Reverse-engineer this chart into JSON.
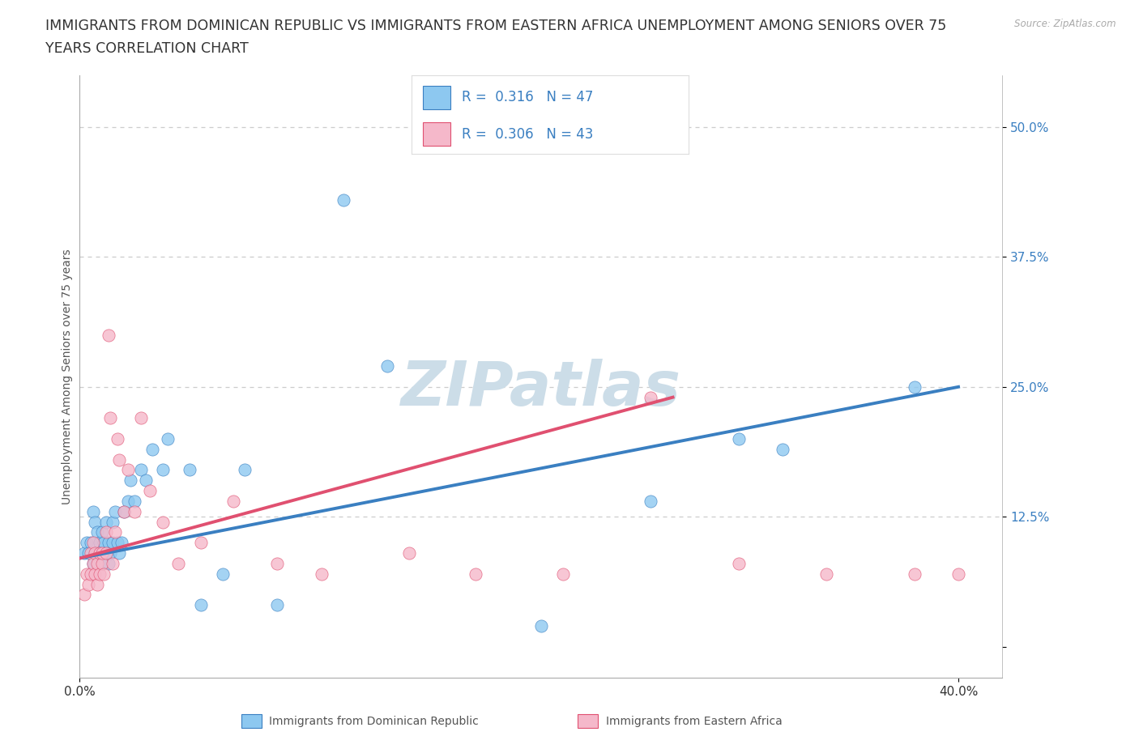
{
  "title_line1": "IMMIGRANTS FROM DOMINICAN REPUBLIC VS IMMIGRANTS FROM EASTERN AFRICA UNEMPLOYMENT AMONG SENIORS OVER 75",
  "title_line2": "YEARS CORRELATION CHART",
  "source": "Source: ZipAtlas.com",
  "ylabel": "Unemployment Among Seniors over 75 years",
  "xlim": [
    0.0,
    0.42
  ],
  "ylim": [
    -0.03,
    0.55
  ],
  "legend1_label": "Immigrants from Dominican Republic",
  "legend2_label": "Immigrants from Eastern Africa",
  "R1": "0.316",
  "N1": "47",
  "R2": "0.306",
  "N2": "43",
  "color1": "#8dc8f0",
  "color2": "#f5b8ca",
  "trendline1_color": "#3a7fc1",
  "trendline2_color": "#e05070",
  "background_color": "#ffffff",
  "watermark": "ZIPatlas",
  "watermark_color": "#ccdde8",
  "scatter1_x": [
    0.002,
    0.003,
    0.004,
    0.005,
    0.006,
    0.006,
    0.007,
    0.007,
    0.008,
    0.008,
    0.009,
    0.009,
    0.01,
    0.01,
    0.011,
    0.012,
    0.012,
    0.013,
    0.013,
    0.014,
    0.015,
    0.015,
    0.016,
    0.017,
    0.018,
    0.019,
    0.02,
    0.022,
    0.023,
    0.025,
    0.028,
    0.03,
    0.033,
    0.038,
    0.04,
    0.05,
    0.055,
    0.065,
    0.075,
    0.09,
    0.12,
    0.14,
    0.21,
    0.26,
    0.3,
    0.32,
    0.38
  ],
  "scatter1_y": [
    0.09,
    0.1,
    0.09,
    0.1,
    0.08,
    0.13,
    0.09,
    0.12,
    0.09,
    0.11,
    0.09,
    0.1,
    0.08,
    0.11,
    0.1,
    0.09,
    0.12,
    0.08,
    0.1,
    0.09,
    0.1,
    0.12,
    0.13,
    0.1,
    0.09,
    0.1,
    0.13,
    0.14,
    0.16,
    0.14,
    0.17,
    0.16,
    0.19,
    0.17,
    0.2,
    0.17,
    0.04,
    0.07,
    0.17,
    0.04,
    0.43,
    0.27,
    0.02,
    0.14,
    0.2,
    0.19,
    0.25
  ],
  "scatter2_x": [
    0.002,
    0.003,
    0.004,
    0.005,
    0.005,
    0.006,
    0.006,
    0.007,
    0.007,
    0.008,
    0.008,
    0.009,
    0.009,
    0.01,
    0.01,
    0.011,
    0.012,
    0.012,
    0.013,
    0.014,
    0.015,
    0.016,
    0.017,
    0.018,
    0.02,
    0.022,
    0.025,
    0.028,
    0.032,
    0.038,
    0.045,
    0.055,
    0.07,
    0.09,
    0.11,
    0.15,
    0.18,
    0.22,
    0.26,
    0.3,
    0.34,
    0.38,
    0.4
  ],
  "scatter2_y": [
    0.05,
    0.07,
    0.06,
    0.07,
    0.09,
    0.08,
    0.1,
    0.07,
    0.09,
    0.06,
    0.08,
    0.07,
    0.09,
    0.08,
    0.09,
    0.07,
    0.09,
    0.11,
    0.3,
    0.22,
    0.08,
    0.11,
    0.2,
    0.18,
    0.13,
    0.17,
    0.13,
    0.22,
    0.15,
    0.12,
    0.08,
    0.1,
    0.14,
    0.08,
    0.07,
    0.09,
    0.07,
    0.07,
    0.24,
    0.08,
    0.07,
    0.07,
    0.07
  ],
  "trendline1_x": [
    0.0,
    0.4
  ],
  "trendline1_y": [
    0.085,
    0.25
  ],
  "trendline2_x": [
    0.0,
    0.27
  ],
  "trendline2_y": [
    0.085,
    0.24
  ],
  "dotted_line_y": 0.125,
  "yticks": [
    0.0,
    0.125,
    0.25,
    0.375,
    0.5
  ],
  "ytick_labels": [
    "",
    "12.5%",
    "25.0%",
    "37.5%",
    "50.0%"
  ],
  "xtick_positions": [
    0.0,
    0.4
  ],
  "xtick_labels": [
    "0.0%",
    "40.0%"
  ],
  "grid_dashes": [
    4,
    4
  ],
  "title_fontsize": 12.5,
  "axis_label_fontsize": 10,
  "tick_fontsize": 11,
  "watermark_fontsize": 55
}
